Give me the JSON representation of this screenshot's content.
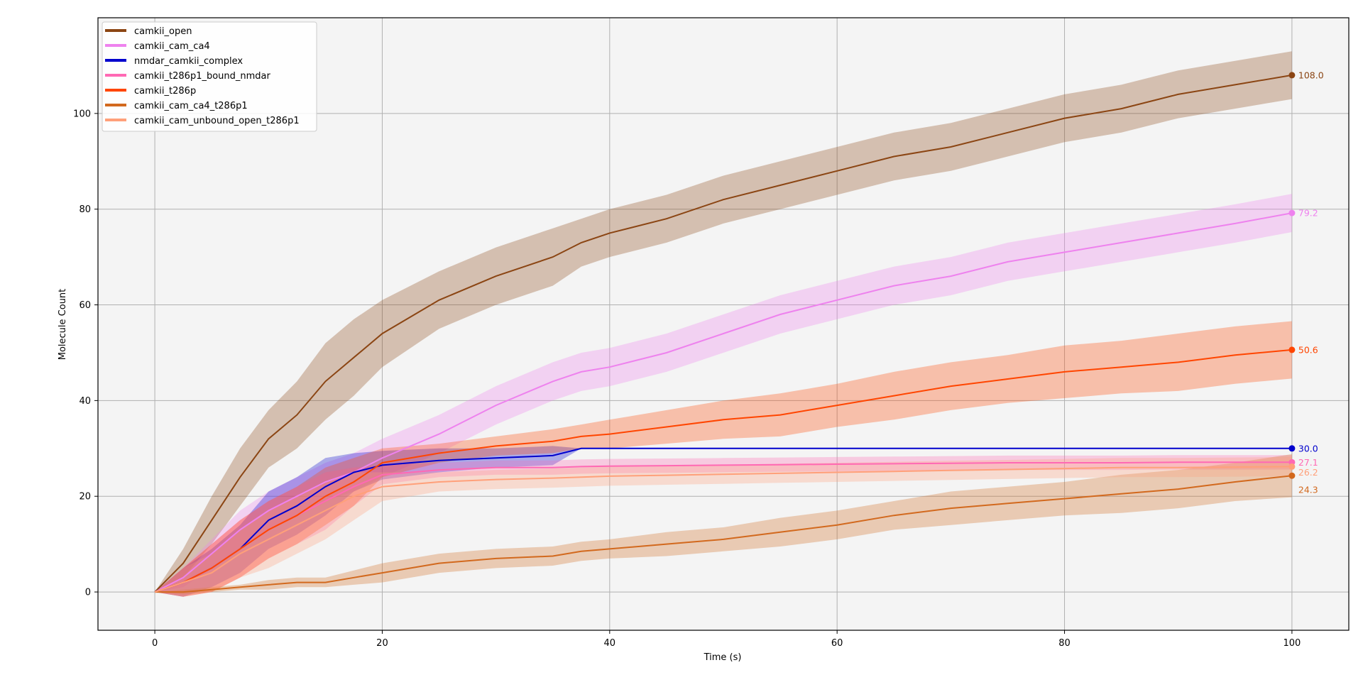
{
  "chart_data": {
    "type": "line",
    "xlabel": "Time (s)",
    "ylabel": "Molecule Count",
    "xlim": [
      -5,
      105
    ],
    "ylim": [
      -8,
      120
    ],
    "x_ticks": [
      0,
      20,
      40,
      60,
      80,
      100
    ],
    "y_ticks": [
      0,
      20,
      40,
      60,
      80,
      100
    ],
    "grid": true,
    "legend_position": "top-left",
    "x": [
      0,
      2.5,
      5,
      7.5,
      10,
      12.5,
      15,
      17.5,
      20,
      25,
      30,
      35,
      37.5,
      40,
      45,
      50,
      55,
      60,
      65,
      70,
      75,
      80,
      85,
      90,
      95,
      100
    ],
    "series": [
      {
        "name": "camkii_open",
        "color": "#8B4513",
        "end_label": "108.0",
        "values": [
          0,
          6,
          15,
          24,
          32,
          37,
          44,
          49,
          54,
          61,
          66,
          70,
          73,
          75,
          78,
          82,
          85,
          88,
          91,
          93,
          96,
          99,
          101,
          104,
          106,
          108
        ],
        "band": [
          0,
          3,
          5,
          6,
          6,
          7,
          8,
          8,
          7,
          6,
          6,
          6,
          5,
          5,
          5,
          5,
          5,
          5,
          5,
          5,
          5,
          5,
          5,
          5,
          5,
          5
        ]
      },
      {
        "name": "camkii_cam_ca4",
        "color": "#EE82EE",
        "end_label": "79.2",
        "values": [
          0,
          3,
          8,
          13,
          17,
          20,
          23,
          25,
          28,
          33,
          39,
          44,
          46,
          47,
          50,
          54,
          58,
          61,
          64,
          66,
          69,
          71,
          73,
          75,
          77,
          79.2
        ],
        "band": [
          0,
          2,
          3,
          4,
          4,
          4,
          4,
          4,
          4,
          4,
          4,
          4,
          4,
          4,
          4,
          4,
          4,
          4,
          4,
          4,
          4,
          4,
          4,
          4,
          4,
          4
        ]
      },
      {
        "name": "nmdar_camkii_complex",
        "color": "#0000CD",
        "end_label": "30.0",
        "values": [
          0,
          2,
          5,
          9,
          15,
          18,
          22,
          25,
          26.5,
          27.5,
          28,
          28.5,
          30,
          30,
          30,
          30,
          30,
          30,
          30,
          30,
          30,
          30,
          30,
          30,
          30,
          30
        ],
        "band": [
          0,
          3,
          4,
          5,
          6,
          6,
          6,
          4,
          3,
          2.5,
          2,
          2,
          0,
          0,
          0,
          0,
          0,
          0,
          0,
          0,
          0,
          0,
          0,
          0,
          0,
          0
        ]
      },
      {
        "name": "camkii_t286p1_bound_nmdar",
        "color": "#FF69B4",
        "end_label": "27.1",
        "values": [
          0,
          2,
          5,
          9,
          13,
          16,
          19,
          22,
          24.5,
          25.5,
          26,
          26,
          26.2,
          26.3,
          26.4,
          26.5,
          26.6,
          26.7,
          26.8,
          26.9,
          27,
          27,
          27,
          27.1,
          27.1,
          27.1
        ],
        "band": [
          0,
          3,
          5,
          6,
          6,
          6,
          6,
          4,
          2,
          1.5,
          1.5,
          1.5,
          1.5,
          1.5,
          1.5,
          1.5,
          1.5,
          1.5,
          1.5,
          1.5,
          1.5,
          1.5,
          1.5,
          1.5,
          1.5,
          1.5
        ]
      },
      {
        "name": "camkii_t286p",
        "color": "#FF4500",
        "end_label": "50.6",
        "values": [
          0,
          2,
          5,
          9,
          13,
          16,
          20,
          23,
          27,
          29,
          30.5,
          31.5,
          32.5,
          33,
          34.5,
          36,
          37,
          39,
          41,
          43,
          44.5,
          46,
          47,
          48,
          49.5,
          50.6
        ],
        "band": [
          0,
          3,
          5,
          6,
          6,
          6,
          6,
          5,
          3,
          2,
          2,
          2.5,
          2.5,
          3,
          3.5,
          4,
          4.5,
          4.5,
          5,
          5,
          5,
          5.5,
          5.5,
          6,
          6,
          6
        ]
      },
      {
        "name": "camkii_cam_ca4_t286p1",
        "color": "#D2691E",
        "end_label": "24.3",
        "values": [
          0,
          0,
          0.5,
          1,
          1.5,
          2,
          2,
          3,
          4,
          6,
          7,
          7.5,
          8.5,
          9,
          10,
          11,
          12.5,
          14,
          16,
          17.5,
          18.5,
          19.5,
          20.5,
          21.5,
          23,
          24.3
        ],
        "band": [
          0,
          0.5,
          0.5,
          0.5,
          1,
          1,
          1,
          1.5,
          2,
          2,
          2,
          2,
          2,
          2,
          2.5,
          2.5,
          3,
          3,
          3,
          3.5,
          3.5,
          3.5,
          4,
          4,
          4,
          4.5
        ]
      },
      {
        "name": "camkii_cam_unbound_open_t286p1",
        "color": "#FFA07A",
        "end_label": "26.2",
        "values": [
          0,
          2,
          4,
          8,
          11,
          14,
          17,
          20,
          22,
          23,
          23.5,
          23.8,
          24,
          24.2,
          24.4,
          24.6,
          24.8,
          25,
          25.2,
          25.4,
          25.6,
          25.8,
          26,
          26,
          26.1,
          26.2
        ],
        "band": [
          0,
          3,
          4,
          5,
          6,
          6,
          6,
          5,
          3,
          2,
          2,
          2,
          2,
          2,
          2,
          2,
          2,
          2,
          2,
          2,
          2,
          2,
          2,
          2,
          2,
          2
        ]
      }
    ]
  }
}
